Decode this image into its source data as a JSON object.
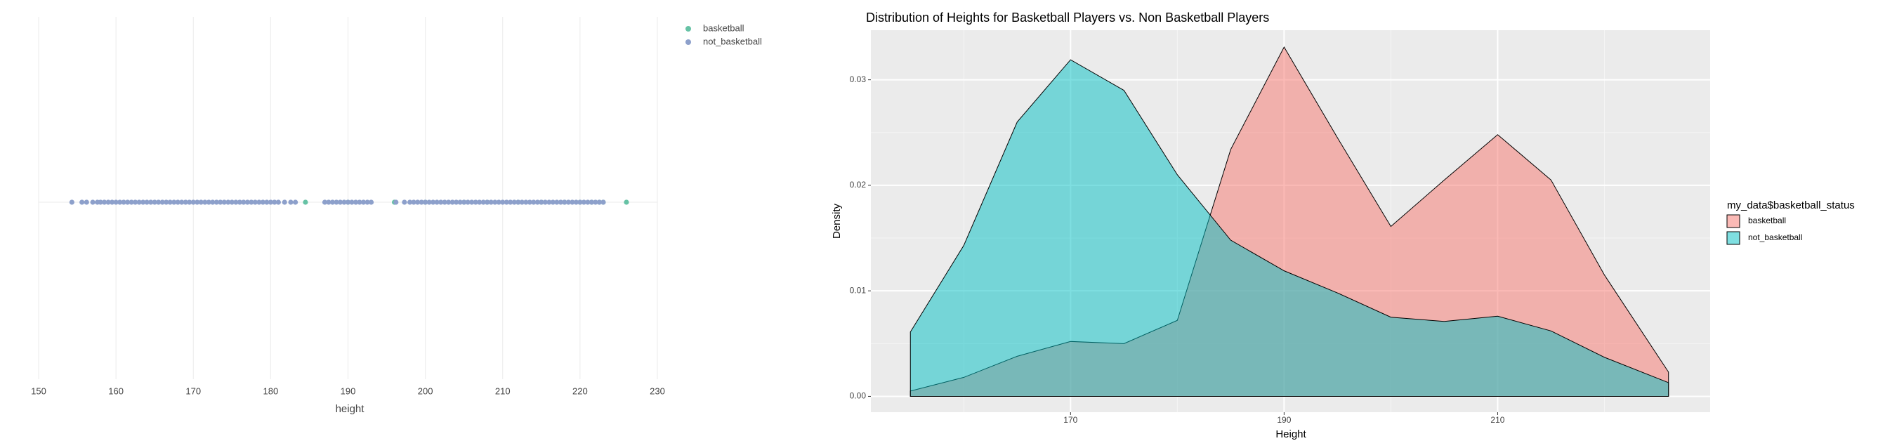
{
  "chart_data": [
    {
      "type": "scatter",
      "x_label": "height",
      "xlim": [
        150,
        230
      ],
      "xticks": [
        150,
        160,
        170,
        180,
        190,
        200,
        210,
        220,
        230
      ],
      "grid": true,
      "legend": "top-right",
      "series": [
        {
          "name": "basketball",
          "color": "#66c2a5",
          "x": [
            184.5,
            190,
            196,
            200,
            205,
            208,
            212,
            215,
            218,
            220,
            221.5,
            222.5,
            223,
            226
          ]
        },
        {
          "name": "not_basketball",
          "color": "#8da0cb",
          "x": [
            154.3,
            155.6,
            156.2,
            157,
            157.6,
            158,
            158.5,
            159,
            159.5,
            160,
            160.5,
            161,
            161.5,
            162,
            162.5,
            163,
            163.5,
            164,
            164.5,
            165,
            165.5,
            166,
            166.5,
            167,
            167.5,
            168,
            168.5,
            169,
            169.5,
            170,
            170.5,
            171,
            171.5,
            172,
            172.5,
            173,
            173.5,
            174,
            174.5,
            175,
            175.5,
            176,
            176.5,
            177,
            177.5,
            178,
            178.5,
            179,
            179.5,
            180,
            180.5,
            181,
            181.8,
            182.6,
            183.2,
            187,
            187.5,
            188,
            188.5,
            189,
            189.5,
            190,
            190.5,
            191,
            191.5,
            192,
            192.5,
            193,
            196.2,
            197.3,
            198,
            198.5,
            199,
            199.5,
            200,
            200.5,
            201,
            201.5,
            202,
            202.5,
            203,
            203.5,
            204,
            204.5,
            205,
            205.5,
            206,
            206.5,
            207,
            207.5,
            208,
            208.5,
            209,
            209.5,
            210,
            210.5,
            211,
            211.5,
            212,
            212.5,
            213,
            213.5,
            214,
            214.5,
            215,
            215.5,
            216,
            216.5,
            217,
            217.5,
            218,
            218.5,
            219,
            219.5,
            220,
            220.5,
            221,
            221.5,
            222,
            222.5,
            223
          ]
        }
      ]
    },
    {
      "type": "density",
      "title": "Distribution of Heights for Basketball Players vs. Non Basketball Players",
      "x_label": "Height",
      "y_label": "Density",
      "legend_title": "my_data$basketball_status",
      "x": [
        155,
        160,
        165,
        170,
        175,
        180,
        185,
        190,
        195,
        200,
        205,
        210,
        215,
        220,
        226
      ],
      "series": [
        {
          "name": "basketball",
          "color": "#F8766D",
          "values": [
            0.0005,
            0.0018,
            0.0038,
            0.0052,
            0.005,
            0.0072,
            0.0234,
            0.0331,
            0.0245,
            0.0161,
            0.0205,
            0.0248,
            0.0205,
            0.0115,
            0.0023
          ]
        },
        {
          "name": "not_basketball",
          "color": "#00BFC4",
          "values": [
            0.0061,
            0.0143,
            0.026,
            0.0319,
            0.029,
            0.021,
            0.0148,
            0.0119,
            0.0098,
            0.0075,
            0.0071,
            0.0076,
            0.0062,
            0.0037,
            0.0013
          ]
        }
      ],
      "xlim": [
        151.3,
        229.9
      ],
      "xticks": [
        170,
        190,
        210
      ],
      "x_minor_ticks": [
        160,
        180,
        200,
        220
      ],
      "ylim": [
        -0.0015,
        0.0347
      ],
      "yticks": [
        {
          "value": 0,
          "label": "0.00"
        },
        0.01,
        0.02,
        0.03
      ],
      "y_minor_ticks": [
        0.005,
        0.015,
        0.025
      ],
      "grid": true,
      "legend": "right"
    }
  ]
}
